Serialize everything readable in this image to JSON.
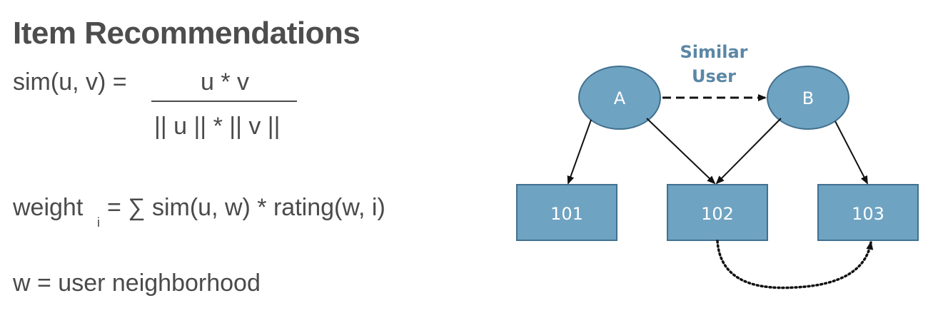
{
  "title": "Item Recommendations",
  "formulas": {
    "sim_lhs": "sim(u, v) =",
    "sim_numerator": "u * v",
    "sim_denominator": "|| u || * || v ||",
    "weight_lhs": "weight",
    "weight_subscript": "i",
    "weight_rhs": "= ∑ sim(u, w) * rating(w, i)",
    "w_def": "w = user neighborhood"
  },
  "diagram": {
    "users": [
      {
        "id": "user-a",
        "label": "A"
      },
      {
        "id": "user-b",
        "label": "B"
      }
    ],
    "items": [
      {
        "id": "item-101",
        "label": "101"
      },
      {
        "id": "item-102",
        "label": "102"
      },
      {
        "id": "item-103",
        "label": "103"
      }
    ],
    "similar_label_line1": "Similar",
    "similar_label_line2": "User",
    "colors": {
      "node_fill": "#6fa3c2",
      "node_stroke": "#41708f",
      "node_text": "#ffffff",
      "similar_text": "#5b87a6",
      "arrow": "#111111"
    }
  }
}
